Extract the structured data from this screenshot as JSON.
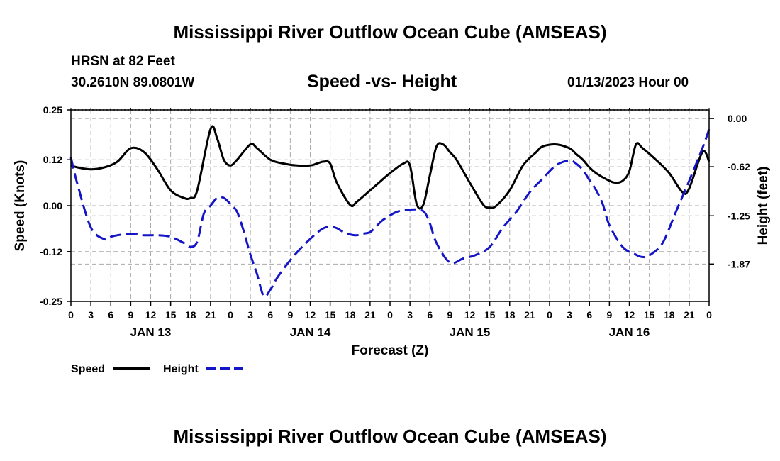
{
  "page": {
    "title_top": "Mississippi River Outflow Ocean Cube (AMSEAS)",
    "title_bottom": "Mississippi River Outflow Ocean Cube (AMSEAS)",
    "station": "HRSN at 82 Feet",
    "coords": "30.2610N  89.0801W",
    "subtitle": "Speed -vs- Height",
    "date": "01/13/2023 Hour 00"
  },
  "colors": {
    "speed": "#000000",
    "height": "#1515c8",
    "grid": "#aaaaaa"
  },
  "chart_data": {
    "type": "line",
    "title": "Speed -vs- Height",
    "xlabel": "Forecast (Z)",
    "ylabel": "Speed (Knots)",
    "y2label": "Height (feet)",
    "xlim": [
      0,
      96
    ],
    "ylim": [
      -0.25,
      0.25
    ],
    "y2lim": [
      -2.35,
      0.11
    ],
    "x_ticks": [
      0,
      3,
      6,
      9,
      12,
      15,
      18,
      21,
      24,
      27,
      30,
      33,
      36,
      39,
      42,
      45,
      48,
      51,
      54,
      57,
      60,
      63,
      66,
      69,
      72,
      75,
      78,
      81,
      84,
      87,
      90,
      93,
      96
    ],
    "x_tick_labels": [
      "0",
      "3",
      "6",
      "9",
      "12",
      "15",
      "18",
      "21",
      "0",
      "3",
      "6",
      "9",
      "12",
      "15",
      "18",
      "21",
      "0",
      "3",
      "6",
      "9",
      "12",
      "15",
      "18",
      "21",
      "0",
      "3",
      "6",
      "9",
      "12",
      "15",
      "18",
      "21",
      "0"
    ],
    "day_labels": [
      {
        "x": 12,
        "label": "JAN 13"
      },
      {
        "x": 36,
        "label": "JAN 14"
      },
      {
        "x": 60,
        "label": "JAN 15"
      },
      {
        "x": 84,
        "label": "JAN 16"
      }
    ],
    "y_ticks": [
      0.25,
      0.12,
      0.0,
      -0.12,
      -0.25
    ],
    "y_tick_labels": [
      "0.25",
      "0.12",
      "0.00",
      "-0.12",
      "-0.25"
    ],
    "y2_ticks": [
      0.0,
      -0.62,
      -1.25,
      -1.87
    ],
    "y2_tick_labels": [
      "0.00",
      "-0.62",
      "-1.25",
      "-1.87"
    ],
    "grid": true,
    "legend": {
      "position": "bottom-left",
      "entries": [
        "Speed",
        "Height"
      ]
    },
    "series": [
      {
        "name": "Speed",
        "axis": "left",
        "style": "solid",
        "x": [
          0,
          1,
          3,
          5,
          7,
          9,
          11,
          13,
          15,
          17,
          18,
          19,
          21,
          22,
          23,
          24,
          25,
          27,
          28,
          30,
          32,
          34,
          36,
          37,
          38,
          39,
          40,
          42,
          43,
          45,
          46,
          48,
          50,
          51,
          52,
          53,
          54,
          55,
          56,
          57,
          58,
          60,
          62,
          63,
          64,
          66,
          68,
          70,
          71,
          73,
          75,
          76,
          77,
          78,
          79,
          81,
          82,
          83,
          84,
          85,
          86,
          88,
          90,
          92,
          93,
          95,
          96
        ],
        "values": [
          0.105,
          0.1,
          0.095,
          0.1,
          0.115,
          0.15,
          0.14,
          0.095,
          0.04,
          0.02,
          0.02,
          0.04,
          0.2,
          0.175,
          0.12,
          0.105,
          0.12,
          0.16,
          0.15,
          0.12,
          0.11,
          0.105,
          0.105,
          0.11,
          0.115,
          0.11,
          0.06,
          0.002,
          0.01,
          0.04,
          0.055,
          0.085,
          0.11,
          0.105,
          0.005,
          0.002,
          0.08,
          0.155,
          0.16,
          0.14,
          0.12,
          0.06,
          0.003,
          -0.005,
          0.0,
          0.04,
          0.105,
          0.14,
          0.155,
          0.16,
          0.15,
          0.135,
          0.12,
          0.1,
          0.085,
          0.065,
          0.06,
          0.065,
          0.09,
          0.16,
          0.15,
          0.12,
          0.085,
          0.035,
          0.045,
          0.14,
          0.115
        ]
      },
      {
        "name": "Height",
        "axis": "right",
        "style": "dashed",
        "x": [
          0,
          1,
          3,
          5,
          6,
          7,
          9,
          11,
          13,
          15,
          17,
          18,
          19,
          20,
          21,
          22,
          23,
          24,
          25,
          26,
          27,
          28,
          29,
          30,
          31,
          33,
          35,
          37,
          38,
          39,
          40,
          41,
          42,
          43,
          44,
          45,
          46,
          47,
          49,
          51,
          53,
          54,
          55,
          57,
          59,
          61,
          63,
          65,
          67,
          69,
          71,
          73,
          75,
          76,
          77,
          78,
          79,
          80,
          81,
          83,
          85,
          86,
          87,
          89,
          91,
          93,
          95,
          96
        ],
        "values": [
          -0.5,
          -0.85,
          -1.4,
          -1.55,
          -1.52,
          -1.5,
          -1.48,
          -1.5,
          -1.5,
          -1.52,
          -1.6,
          -1.65,
          -1.58,
          -1.22,
          -1.12,
          -1.02,
          -1.02,
          -1.1,
          -1.2,
          -1.45,
          -1.75,
          -2.0,
          -2.28,
          -2.2,
          -2.05,
          -1.82,
          -1.63,
          -1.47,
          -1.41,
          -1.39,
          -1.41,
          -1.46,
          -1.49,
          -1.5,
          -1.48,
          -1.46,
          -1.38,
          -1.3,
          -1.2,
          -1.17,
          -1.19,
          -1.35,
          -1.6,
          -1.85,
          -1.8,
          -1.75,
          -1.65,
          -1.4,
          -1.2,
          -0.95,
          -0.77,
          -0.6,
          -0.54,
          -0.58,
          -0.66,
          -0.79,
          -0.92,
          -1.1,
          -1.37,
          -1.65,
          -1.75,
          -1.78,
          -1.76,
          -1.6,
          -1.2,
          -0.8,
          -0.38,
          -0.14
        ]
      }
    ]
  }
}
